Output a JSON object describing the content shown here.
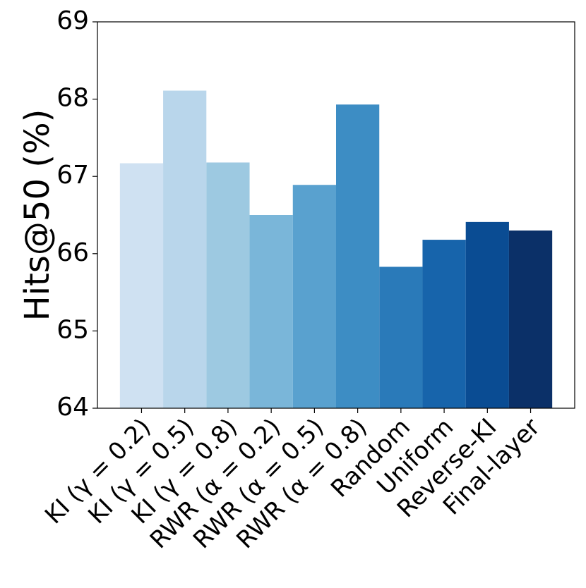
{
  "chart_data": {
    "type": "bar",
    "y_label": "Hits@50 (%)",
    "categories": [
      "KI (γ = 0.2)",
      "KI (γ = 0.5)",
      "KI (γ = 0.8)",
      "RWR (α = 0.2)",
      "RWR (α = 0.5)",
      "RWR (α = 0.8)",
      "Random",
      "Uniform",
      "Reverse-KI",
      "Final-layer"
    ],
    "values": [
      67.17,
      68.11,
      67.18,
      66.5,
      66.89,
      67.93,
      65.83,
      66.18,
      66.41,
      66.3
    ],
    "colors": [
      "#cfe1f2",
      "#b9d6eb",
      "#9dc9e1",
      "#7ab6d9",
      "#59a1cf",
      "#3d8dc4",
      "#2a7ab9",
      "#1764ab",
      "#0a4c93",
      "#0b3068"
    ],
    "ylim": [
      64,
      69
    ],
    "yticks": [
      64,
      65,
      66,
      67,
      68,
      69
    ]
  }
}
